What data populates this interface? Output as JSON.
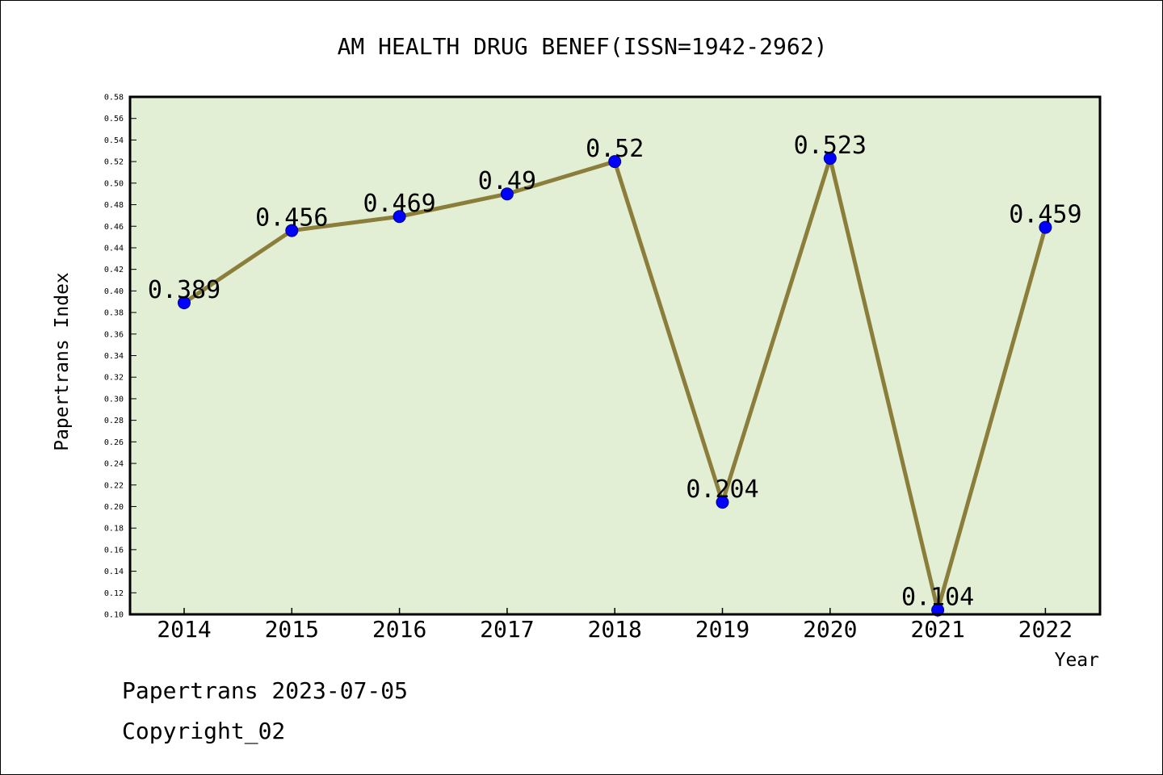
{
  "chart_data": {
    "type": "line",
    "title": "AM HEALTH DRUG BENEF(ISSN=1942-2962)",
    "xlabel": "Year",
    "ylabel": "Papertrans Index",
    "categories": [
      "2014",
      "2015",
      "2016",
      "2017",
      "2018",
      "2019",
      "2020",
      "2021",
      "2022"
    ],
    "series": [
      {
        "values": [
          0.389,
          0.456,
          0.469,
          0.49,
          0.52,
          0.204,
          0.523,
          0.104,
          0.459
        ],
        "data_labels": [
          "0.389",
          "0.456",
          "0.469",
          "0.49",
          "0.52",
          "0.204",
          "0.523",
          "0.104",
          "0.459"
        ]
      }
    ],
    "ylim": [
      0.1,
      0.58
    ],
    "ytick_step": 0.02,
    "yticks": [
      "0.10",
      "0.12",
      "0.14",
      "0.16",
      "0.18",
      "0.20",
      "0.22",
      "0.24",
      "0.26",
      "0.28",
      "0.30",
      "0.32",
      "0.34",
      "0.36",
      "0.38",
      "0.40",
      "0.42",
      "0.44",
      "0.46",
      "0.48",
      "0.50",
      "0.52",
      "0.54",
      "0.56",
      "0.58"
    ],
    "grid": false,
    "colors": {
      "plot_background": "#e2efd5",
      "line": "#8b7d3a",
      "marker": "#0000ff",
      "marker_edge": "#00008b",
      "text": "#000000"
    }
  },
  "footer": {
    "line1": "Papertrans 2023-07-05",
    "line2": "Copyright_02"
  }
}
